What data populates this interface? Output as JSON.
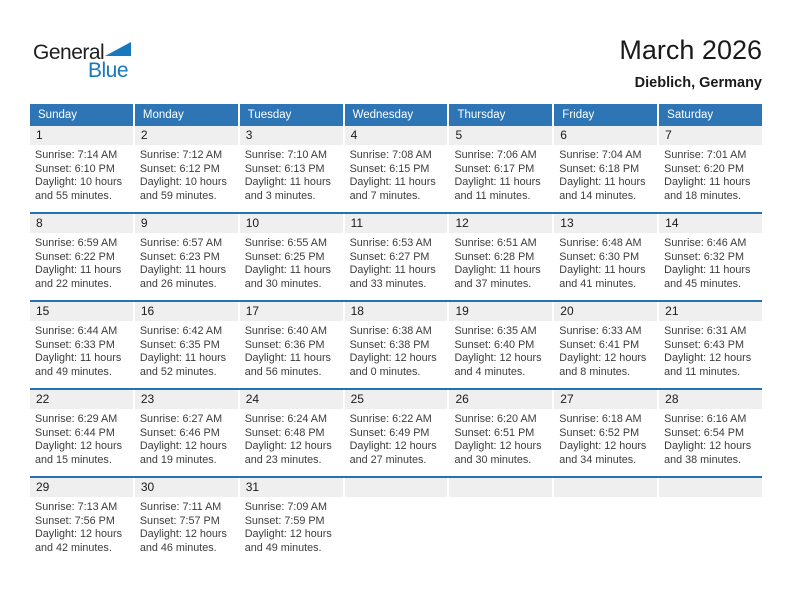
{
  "logo": {
    "word1": "General",
    "word2": "Blue"
  },
  "header": {
    "title": "March 2026",
    "subtitle": "Dieblich, Germany"
  },
  "colors": {
    "header_bar": "#2e75b6",
    "week_separator": "#2471b5",
    "day_band": "#efefef",
    "logo_blue": "#1878be",
    "weekday_text": "#ffffff"
  },
  "weekdays": [
    "Sunday",
    "Monday",
    "Tuesday",
    "Wednesday",
    "Thursday",
    "Friday",
    "Saturday"
  ],
  "weeks": [
    [
      {
        "day": "1",
        "lines": [
          "Sunrise: 7:14 AM",
          "Sunset: 6:10 PM",
          "Daylight: 10 hours",
          "and 55 minutes."
        ]
      },
      {
        "day": "2",
        "lines": [
          "Sunrise: 7:12 AM",
          "Sunset: 6:12 PM",
          "Daylight: 10 hours",
          "and 59 minutes."
        ]
      },
      {
        "day": "3",
        "lines": [
          "Sunrise: 7:10 AM",
          "Sunset: 6:13 PM",
          "Daylight: 11 hours",
          "and 3 minutes."
        ]
      },
      {
        "day": "4",
        "lines": [
          "Sunrise: 7:08 AM",
          "Sunset: 6:15 PM",
          "Daylight: 11 hours",
          "and 7 minutes."
        ]
      },
      {
        "day": "5",
        "lines": [
          "Sunrise: 7:06 AM",
          "Sunset: 6:17 PM",
          "Daylight: 11 hours",
          "and 11 minutes."
        ]
      },
      {
        "day": "6",
        "lines": [
          "Sunrise: 7:04 AM",
          "Sunset: 6:18 PM",
          "Daylight: 11 hours",
          "and 14 minutes."
        ]
      },
      {
        "day": "7",
        "lines": [
          "Sunrise: 7:01 AM",
          "Sunset: 6:20 PM",
          "Daylight: 11 hours",
          "and 18 minutes."
        ]
      }
    ],
    [
      {
        "day": "8",
        "lines": [
          "Sunrise: 6:59 AM",
          "Sunset: 6:22 PM",
          "Daylight: 11 hours",
          "and 22 minutes."
        ]
      },
      {
        "day": "9",
        "lines": [
          "Sunrise: 6:57 AM",
          "Sunset: 6:23 PM",
          "Daylight: 11 hours",
          "and 26 minutes."
        ]
      },
      {
        "day": "10",
        "lines": [
          "Sunrise: 6:55 AM",
          "Sunset: 6:25 PM",
          "Daylight: 11 hours",
          "and 30 minutes."
        ]
      },
      {
        "day": "11",
        "lines": [
          "Sunrise: 6:53 AM",
          "Sunset: 6:27 PM",
          "Daylight: 11 hours",
          "and 33 minutes."
        ]
      },
      {
        "day": "12",
        "lines": [
          "Sunrise: 6:51 AM",
          "Sunset: 6:28 PM",
          "Daylight: 11 hours",
          "and 37 minutes."
        ]
      },
      {
        "day": "13",
        "lines": [
          "Sunrise: 6:48 AM",
          "Sunset: 6:30 PM",
          "Daylight: 11 hours",
          "and 41 minutes."
        ]
      },
      {
        "day": "14",
        "lines": [
          "Sunrise: 6:46 AM",
          "Sunset: 6:32 PM",
          "Daylight: 11 hours",
          "and 45 minutes."
        ]
      }
    ],
    [
      {
        "day": "15",
        "lines": [
          "Sunrise: 6:44 AM",
          "Sunset: 6:33 PM",
          "Daylight: 11 hours",
          "and 49 minutes."
        ]
      },
      {
        "day": "16",
        "lines": [
          "Sunrise: 6:42 AM",
          "Sunset: 6:35 PM",
          "Daylight: 11 hours",
          "and 52 minutes."
        ]
      },
      {
        "day": "17",
        "lines": [
          "Sunrise: 6:40 AM",
          "Sunset: 6:36 PM",
          "Daylight: 11 hours",
          "and 56 minutes."
        ]
      },
      {
        "day": "18",
        "lines": [
          "Sunrise: 6:38 AM",
          "Sunset: 6:38 PM",
          "Daylight: 12 hours",
          "and 0 minutes."
        ]
      },
      {
        "day": "19",
        "lines": [
          "Sunrise: 6:35 AM",
          "Sunset: 6:40 PM",
          "Daylight: 12 hours",
          "and 4 minutes."
        ]
      },
      {
        "day": "20",
        "lines": [
          "Sunrise: 6:33 AM",
          "Sunset: 6:41 PM",
          "Daylight: 12 hours",
          "and 8 minutes."
        ]
      },
      {
        "day": "21",
        "lines": [
          "Sunrise: 6:31 AM",
          "Sunset: 6:43 PM",
          "Daylight: 12 hours",
          "and 11 minutes."
        ]
      }
    ],
    [
      {
        "day": "22",
        "lines": [
          "Sunrise: 6:29 AM",
          "Sunset: 6:44 PM",
          "Daylight: 12 hours",
          "and 15 minutes."
        ]
      },
      {
        "day": "23",
        "lines": [
          "Sunrise: 6:27 AM",
          "Sunset: 6:46 PM",
          "Daylight: 12 hours",
          "and 19 minutes."
        ]
      },
      {
        "day": "24",
        "lines": [
          "Sunrise: 6:24 AM",
          "Sunset: 6:48 PM",
          "Daylight: 12 hours",
          "and 23 minutes."
        ]
      },
      {
        "day": "25",
        "lines": [
          "Sunrise: 6:22 AM",
          "Sunset: 6:49 PM",
          "Daylight: 12 hours",
          "and 27 minutes."
        ]
      },
      {
        "day": "26",
        "lines": [
          "Sunrise: 6:20 AM",
          "Sunset: 6:51 PM",
          "Daylight: 12 hours",
          "and 30 minutes."
        ]
      },
      {
        "day": "27",
        "lines": [
          "Sunrise: 6:18 AM",
          "Sunset: 6:52 PM",
          "Daylight: 12 hours",
          "and 34 minutes."
        ]
      },
      {
        "day": "28",
        "lines": [
          "Sunrise: 6:16 AM",
          "Sunset: 6:54 PM",
          "Daylight: 12 hours",
          "and 38 minutes."
        ]
      }
    ],
    [
      {
        "day": "29",
        "lines": [
          "Sunrise: 7:13 AM",
          "Sunset: 7:56 PM",
          "Daylight: 12 hours",
          "and 42 minutes."
        ]
      },
      {
        "day": "30",
        "lines": [
          "Sunrise: 7:11 AM",
          "Sunset: 7:57 PM",
          "Daylight: 12 hours",
          "and 46 minutes."
        ]
      },
      {
        "day": "31",
        "lines": [
          "Sunrise: 7:09 AM",
          "Sunset: 7:59 PM",
          "Daylight: 12 hours",
          "and 49 minutes."
        ]
      },
      null,
      null,
      null,
      null
    ]
  ]
}
